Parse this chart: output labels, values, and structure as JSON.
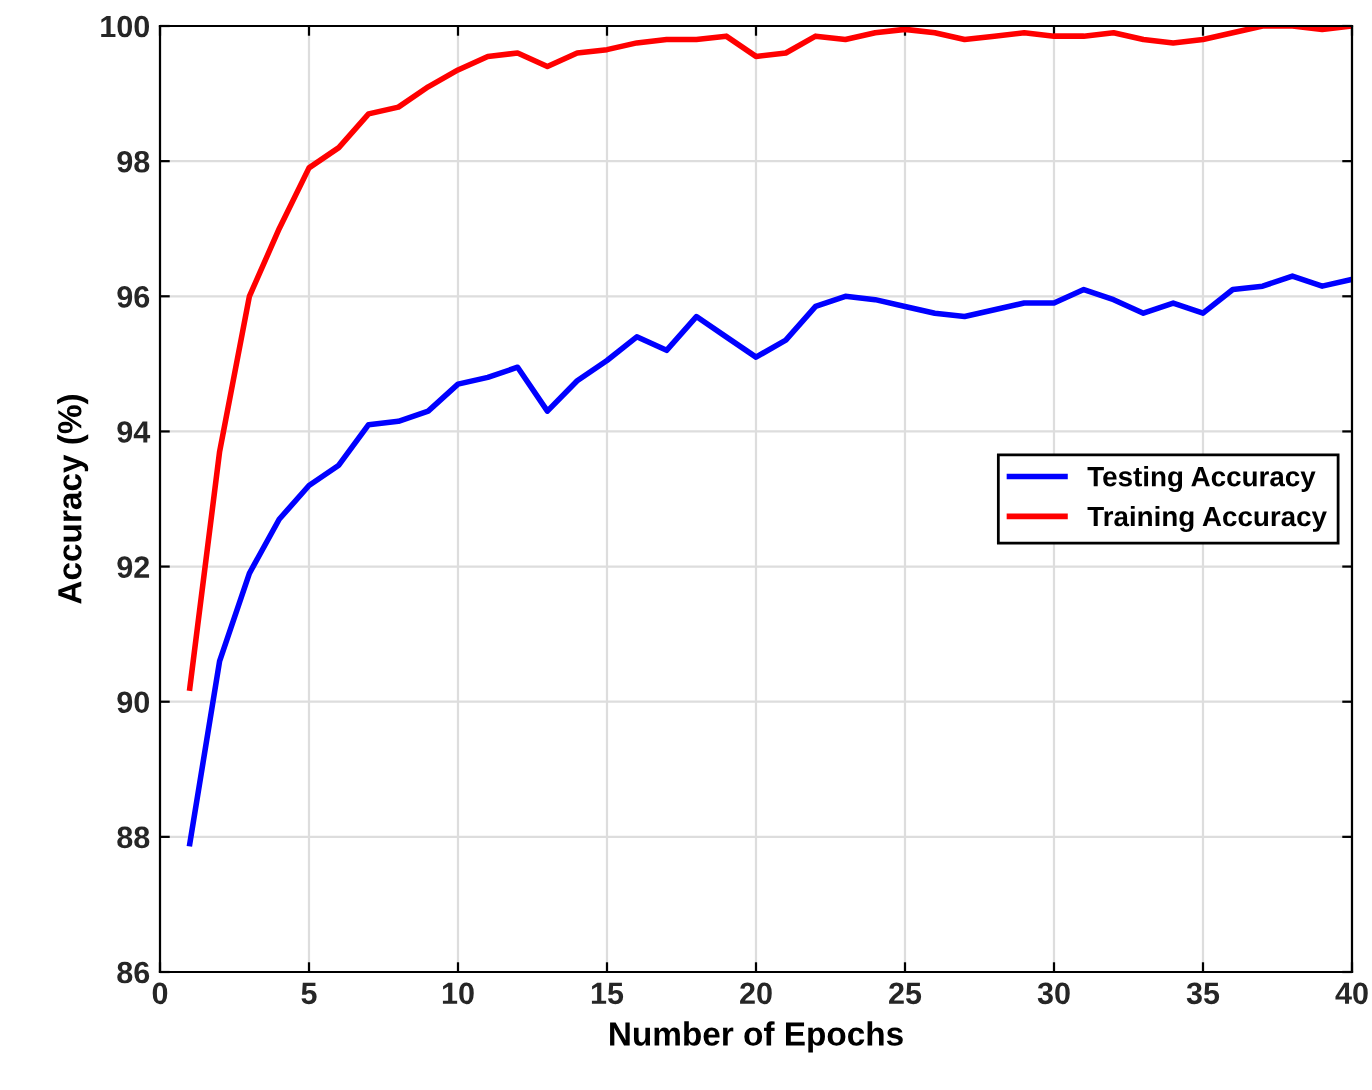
{
  "chart_data": {
    "type": "line",
    "xlabel": "Number of Epochs",
    "ylabel": "Accuracy (%)",
    "x": [
      1,
      2,
      3,
      4,
      5,
      6,
      7,
      8,
      9,
      10,
      11,
      12,
      13,
      14,
      15,
      16,
      17,
      18,
      19,
      20,
      21,
      22,
      23,
      24,
      25,
      26,
      27,
      28,
      29,
      30,
      31,
      32,
      33,
      34,
      35,
      36,
      37,
      38,
      39,
      40
    ],
    "series": [
      {
        "name": "Testing Accuracy",
        "color": "#0000ff",
        "values": [
          87.9,
          90.6,
          91.9,
          92.7,
          93.2,
          93.5,
          94.1,
          94.15,
          94.3,
          94.7,
          94.8,
          94.95,
          94.3,
          94.75,
          95.05,
          95.4,
          95.2,
          95.7,
          95.4,
          95.1,
          95.35,
          95.85,
          96.0,
          95.95,
          95.85,
          95.75,
          95.7,
          95.8,
          95.9,
          95.9,
          96.1,
          95.95,
          95.75,
          95.9,
          95.75,
          96.1,
          96.15,
          96.3,
          96.15,
          96.25
        ]
      },
      {
        "name": "Training Accuracy",
        "color": "#ff0000",
        "values": [
          90.2,
          93.7,
          96.0,
          97.0,
          97.9,
          98.2,
          98.7,
          98.8,
          99.1,
          99.35,
          99.55,
          99.6,
          99.4,
          99.6,
          99.65,
          99.75,
          99.8,
          99.8,
          99.85,
          99.55,
          99.6,
          99.85,
          99.8,
          99.9,
          99.95,
          99.9,
          99.8,
          99.85,
          99.9,
          99.85,
          99.85,
          99.9,
          99.8,
          99.75,
          99.8,
          99.9,
          100.0,
          100.0,
          99.95,
          100.0
        ]
      }
    ],
    "xlim": [
      0,
      40
    ],
    "xticks": [
      0,
      5,
      10,
      15,
      20,
      25,
      30,
      35,
      40
    ],
    "ylim": [
      86,
      100
    ],
    "yticks": [
      86,
      88,
      90,
      92,
      94,
      96,
      98,
      100
    ],
    "grid": true,
    "legend": "center right",
    "marker": "none",
    "line_style": "solid"
  }
}
